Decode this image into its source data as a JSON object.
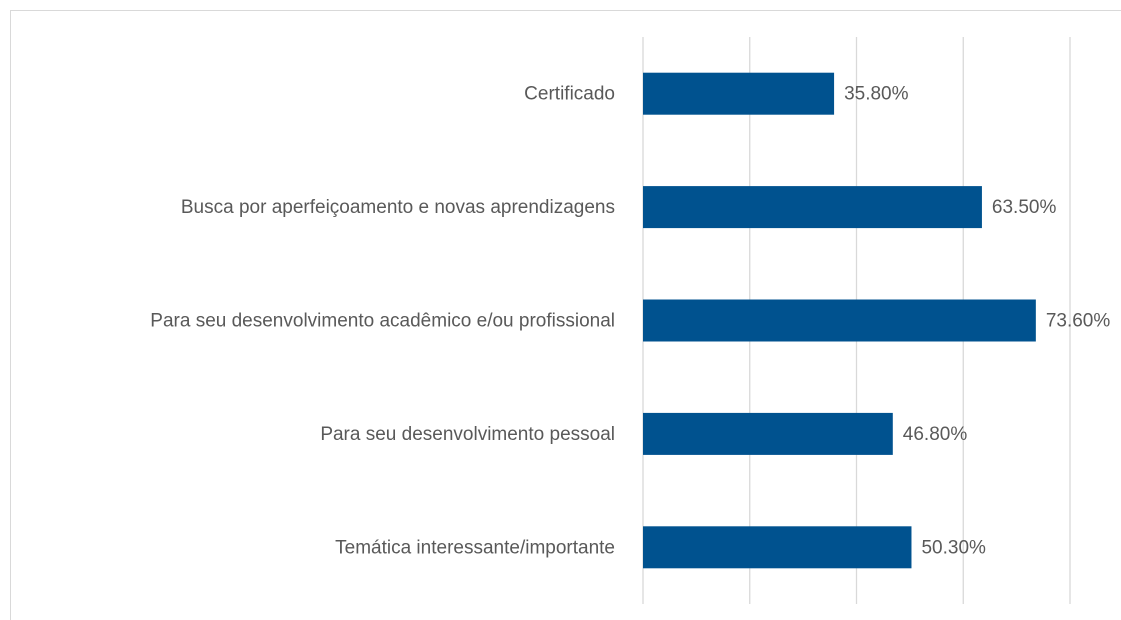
{
  "chart_data": {
    "type": "barh",
    "categories": [
      "Certificado",
      "Busca por aperfeiçoamento e novas aprendizagens",
      "Para seu desenvolvimento acadêmico e/ou profissional",
      "Para seu desenvolvimento pessoal",
      "Temática interessante/importante"
    ],
    "values": [
      35.8,
      63.5,
      73.6,
      46.8,
      50.3
    ],
    "value_labels": [
      "35.80%",
      "63.50%",
      "73.60%",
      "46.80%",
      "50.30%"
    ],
    "color": "#00528f",
    "xlim": [
      0,
      80
    ],
    "xticks": [
      0,
      20,
      40,
      60,
      80
    ],
    "grid": true
  }
}
